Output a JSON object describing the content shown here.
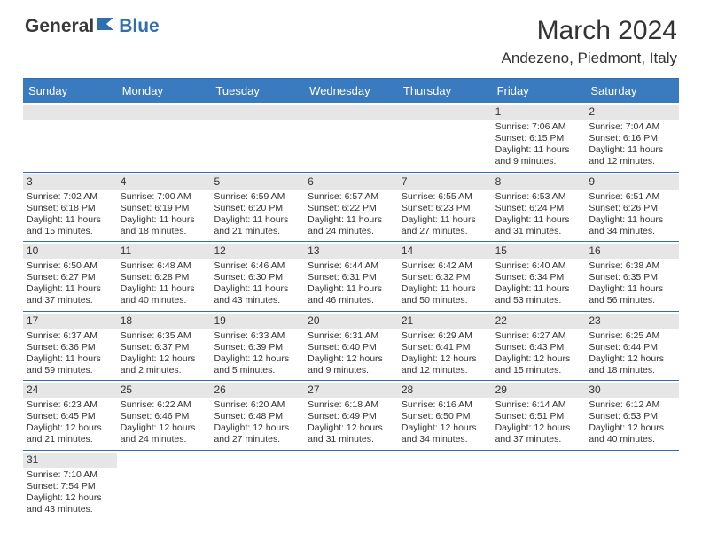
{
  "logo": {
    "general": "General",
    "blue": "Blue"
  },
  "title": "March 2024",
  "location": "Andezeno, Piedmont, Italy",
  "colors": {
    "header_bg": "#3a7bbf",
    "header_text": "#ffffff",
    "border": "#2f6fad",
    "daynum_bg": "#e6e6e6",
    "text": "#333333"
  },
  "weekdays": [
    "Sunday",
    "Monday",
    "Tuesday",
    "Wednesday",
    "Thursday",
    "Friday",
    "Saturday"
  ],
  "weeks": [
    [
      {
        "empty": true
      },
      {
        "empty": true
      },
      {
        "empty": true
      },
      {
        "empty": true
      },
      {
        "empty": true
      },
      {
        "day": "1",
        "sunrise": "Sunrise: 7:06 AM",
        "sunset": "Sunset: 6:15 PM",
        "daylight": "Daylight: 11 hours and 9 minutes."
      },
      {
        "day": "2",
        "sunrise": "Sunrise: 7:04 AM",
        "sunset": "Sunset: 6:16 PM",
        "daylight": "Daylight: 11 hours and 12 minutes."
      }
    ],
    [
      {
        "day": "3",
        "sunrise": "Sunrise: 7:02 AM",
        "sunset": "Sunset: 6:18 PM",
        "daylight": "Daylight: 11 hours and 15 minutes."
      },
      {
        "day": "4",
        "sunrise": "Sunrise: 7:00 AM",
        "sunset": "Sunset: 6:19 PM",
        "daylight": "Daylight: 11 hours and 18 minutes."
      },
      {
        "day": "5",
        "sunrise": "Sunrise: 6:59 AM",
        "sunset": "Sunset: 6:20 PM",
        "daylight": "Daylight: 11 hours and 21 minutes."
      },
      {
        "day": "6",
        "sunrise": "Sunrise: 6:57 AM",
        "sunset": "Sunset: 6:22 PM",
        "daylight": "Daylight: 11 hours and 24 minutes."
      },
      {
        "day": "7",
        "sunrise": "Sunrise: 6:55 AM",
        "sunset": "Sunset: 6:23 PM",
        "daylight": "Daylight: 11 hours and 27 minutes."
      },
      {
        "day": "8",
        "sunrise": "Sunrise: 6:53 AM",
        "sunset": "Sunset: 6:24 PM",
        "daylight": "Daylight: 11 hours and 31 minutes."
      },
      {
        "day": "9",
        "sunrise": "Sunrise: 6:51 AM",
        "sunset": "Sunset: 6:26 PM",
        "daylight": "Daylight: 11 hours and 34 minutes."
      }
    ],
    [
      {
        "day": "10",
        "sunrise": "Sunrise: 6:50 AM",
        "sunset": "Sunset: 6:27 PM",
        "daylight": "Daylight: 11 hours and 37 minutes."
      },
      {
        "day": "11",
        "sunrise": "Sunrise: 6:48 AM",
        "sunset": "Sunset: 6:28 PM",
        "daylight": "Daylight: 11 hours and 40 minutes."
      },
      {
        "day": "12",
        "sunrise": "Sunrise: 6:46 AM",
        "sunset": "Sunset: 6:30 PM",
        "daylight": "Daylight: 11 hours and 43 minutes."
      },
      {
        "day": "13",
        "sunrise": "Sunrise: 6:44 AM",
        "sunset": "Sunset: 6:31 PM",
        "daylight": "Daylight: 11 hours and 46 minutes."
      },
      {
        "day": "14",
        "sunrise": "Sunrise: 6:42 AM",
        "sunset": "Sunset: 6:32 PM",
        "daylight": "Daylight: 11 hours and 50 minutes."
      },
      {
        "day": "15",
        "sunrise": "Sunrise: 6:40 AM",
        "sunset": "Sunset: 6:34 PM",
        "daylight": "Daylight: 11 hours and 53 minutes."
      },
      {
        "day": "16",
        "sunrise": "Sunrise: 6:38 AM",
        "sunset": "Sunset: 6:35 PM",
        "daylight": "Daylight: 11 hours and 56 minutes."
      }
    ],
    [
      {
        "day": "17",
        "sunrise": "Sunrise: 6:37 AM",
        "sunset": "Sunset: 6:36 PM",
        "daylight": "Daylight: 11 hours and 59 minutes."
      },
      {
        "day": "18",
        "sunrise": "Sunrise: 6:35 AM",
        "sunset": "Sunset: 6:37 PM",
        "daylight": "Daylight: 12 hours and 2 minutes."
      },
      {
        "day": "19",
        "sunrise": "Sunrise: 6:33 AM",
        "sunset": "Sunset: 6:39 PM",
        "daylight": "Daylight: 12 hours and 5 minutes."
      },
      {
        "day": "20",
        "sunrise": "Sunrise: 6:31 AM",
        "sunset": "Sunset: 6:40 PM",
        "daylight": "Daylight: 12 hours and 9 minutes."
      },
      {
        "day": "21",
        "sunrise": "Sunrise: 6:29 AM",
        "sunset": "Sunset: 6:41 PM",
        "daylight": "Daylight: 12 hours and 12 minutes."
      },
      {
        "day": "22",
        "sunrise": "Sunrise: 6:27 AM",
        "sunset": "Sunset: 6:43 PM",
        "daylight": "Daylight: 12 hours and 15 minutes."
      },
      {
        "day": "23",
        "sunrise": "Sunrise: 6:25 AM",
        "sunset": "Sunset: 6:44 PM",
        "daylight": "Daylight: 12 hours and 18 minutes."
      }
    ],
    [
      {
        "day": "24",
        "sunrise": "Sunrise: 6:23 AM",
        "sunset": "Sunset: 6:45 PM",
        "daylight": "Daylight: 12 hours and 21 minutes."
      },
      {
        "day": "25",
        "sunrise": "Sunrise: 6:22 AM",
        "sunset": "Sunset: 6:46 PM",
        "daylight": "Daylight: 12 hours and 24 minutes."
      },
      {
        "day": "26",
        "sunrise": "Sunrise: 6:20 AM",
        "sunset": "Sunset: 6:48 PM",
        "daylight": "Daylight: 12 hours and 27 minutes."
      },
      {
        "day": "27",
        "sunrise": "Sunrise: 6:18 AM",
        "sunset": "Sunset: 6:49 PM",
        "daylight": "Daylight: 12 hours and 31 minutes."
      },
      {
        "day": "28",
        "sunrise": "Sunrise: 6:16 AM",
        "sunset": "Sunset: 6:50 PM",
        "daylight": "Daylight: 12 hours and 34 minutes."
      },
      {
        "day": "29",
        "sunrise": "Sunrise: 6:14 AM",
        "sunset": "Sunset: 6:51 PM",
        "daylight": "Daylight: 12 hours and 37 minutes."
      },
      {
        "day": "30",
        "sunrise": "Sunrise: 6:12 AM",
        "sunset": "Sunset: 6:53 PM",
        "daylight": "Daylight: 12 hours and 40 minutes."
      }
    ],
    [
      {
        "day": "31",
        "sunrise": "Sunrise: 7:10 AM",
        "sunset": "Sunset: 7:54 PM",
        "daylight": "Daylight: 12 hours and 43 minutes."
      },
      {
        "empty": true
      },
      {
        "empty": true
      },
      {
        "empty": true
      },
      {
        "empty": true
      },
      {
        "empty": true
      },
      {
        "empty": true
      }
    ]
  ]
}
